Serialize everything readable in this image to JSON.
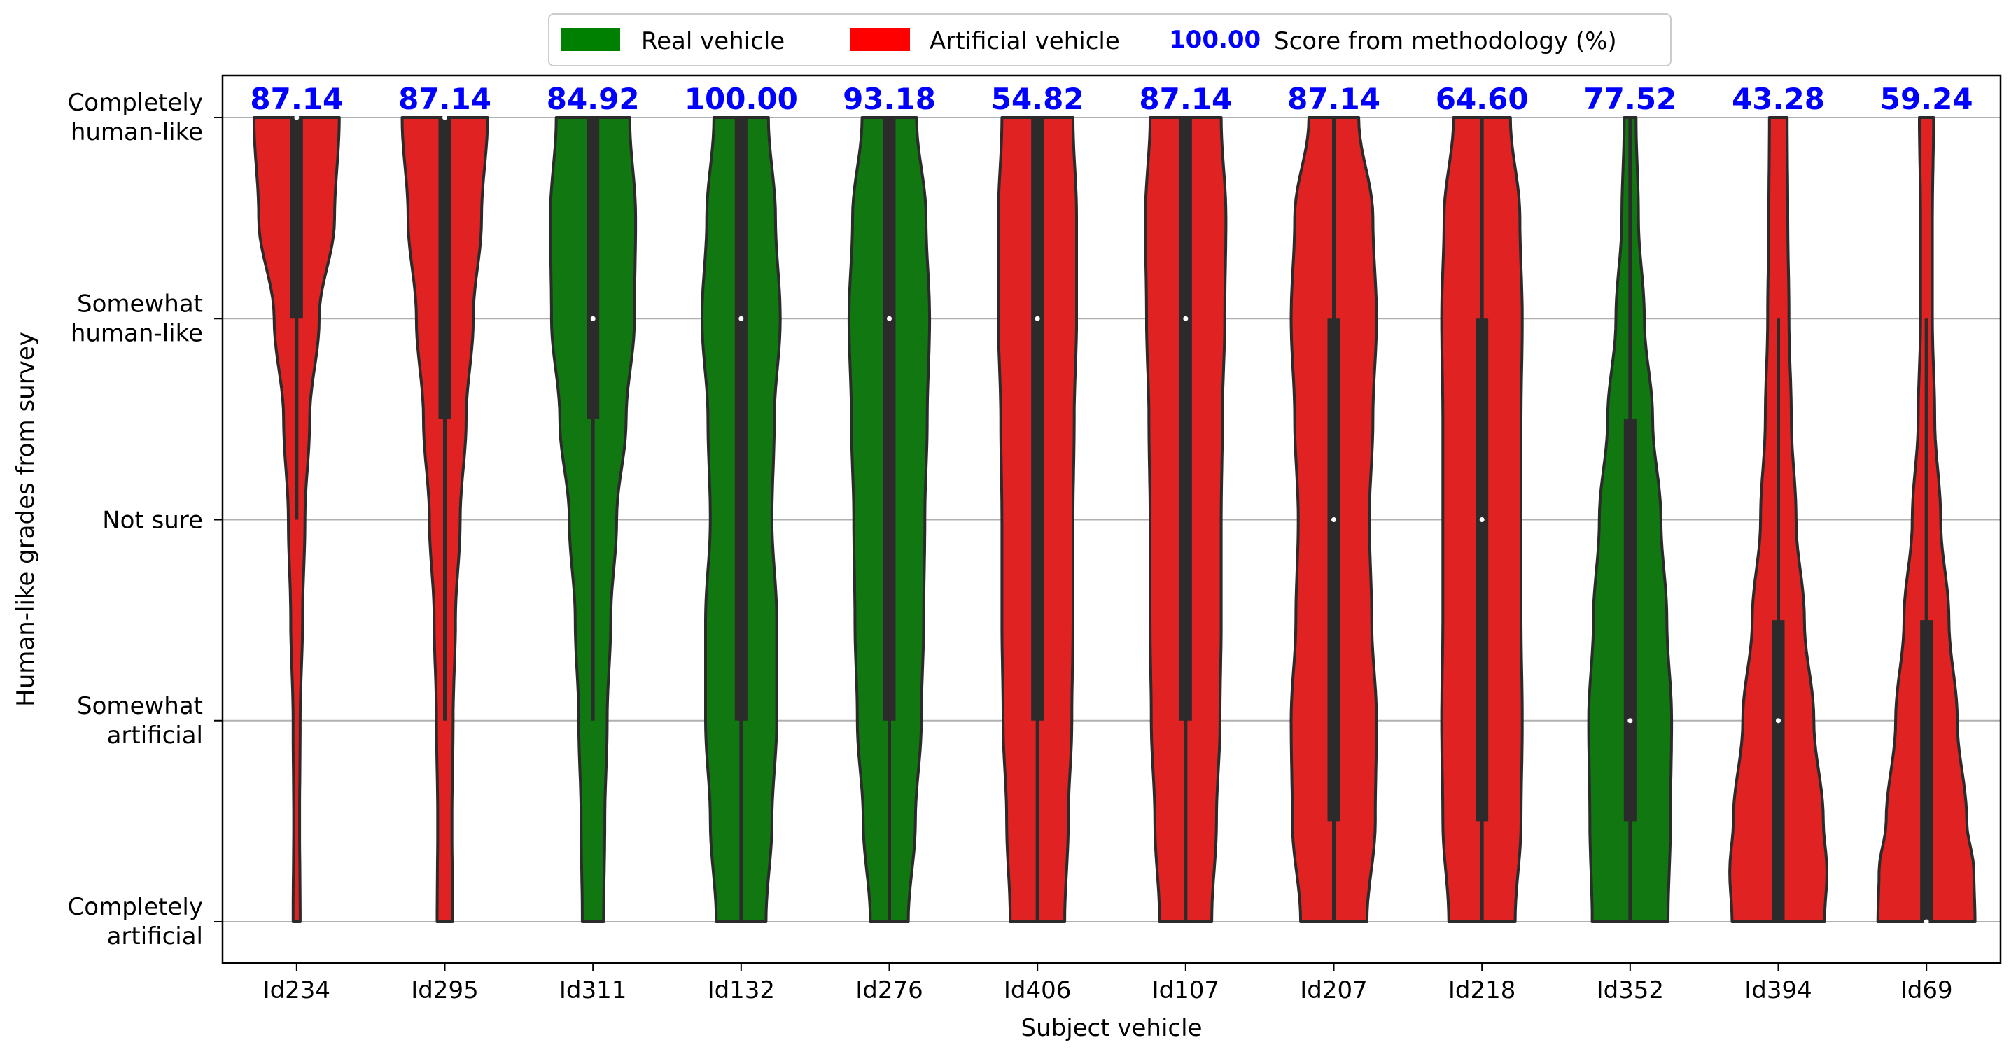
{
  "chart_data": {
    "type": "violin",
    "xlabel": "Subject vehicle",
    "ylabel": "Human-like grades from survey",
    "y_levels": [
      "Completely artificial",
      "Somewhat artificial",
      "Not sure",
      "Somewhat human-like",
      "Completely human-like"
    ],
    "y_tick_lines": [
      [
        "Completely",
        "artificial"
      ],
      [
        "Somewhat",
        "artificial"
      ],
      [
        "Not sure"
      ],
      [
        "Somewhat",
        "human-like"
      ],
      [
        "Completely",
        "human-like"
      ]
    ],
    "ylim": [
      1,
      5
    ],
    "grid": "horizontal",
    "legend": {
      "placement": "top-center",
      "entries": [
        {
          "label": "Real vehicle",
          "color": "#008000"
        },
        {
          "label": "Artificial vehicle",
          "color": "#ff0000"
        }
      ],
      "score_example": "100.00",
      "score_label": "Score from methodology (%)",
      "score_color": "#0000ff"
    },
    "categories": [
      "Id234",
      "Id295",
      "Id311",
      "Id132",
      "Id276",
      "Id406",
      "Id107",
      "Id207",
      "Id218",
      "Id352",
      "Id394",
      "Id69"
    ],
    "series": [
      {
        "id": "Id234",
        "group": "Artificial vehicle",
        "score": "87.14",
        "median": 5,
        "q1": 4,
        "q3": 5,
        "whisker_low": 3,
        "whisker_high": 5,
        "density": [
          [
            1,
            0.06
          ],
          [
            1.5,
            0.05
          ],
          [
            2,
            0.06
          ],
          [
            2.5,
            0.1
          ],
          [
            3,
            0.14
          ],
          [
            3.5,
            0.22
          ],
          [
            4,
            0.38
          ],
          [
            4.5,
            0.64
          ],
          [
            5,
            0.72
          ]
        ]
      },
      {
        "id": "Id295",
        "group": "Artificial vehicle",
        "score": "87.14",
        "median": 5,
        "q1": 3.5,
        "q3": 5,
        "whisker_low": 2,
        "whisker_high": 5,
        "density": [
          [
            1,
            0.13
          ],
          [
            1.5,
            0.12
          ],
          [
            2,
            0.14
          ],
          [
            2.5,
            0.18
          ],
          [
            3,
            0.26
          ],
          [
            3.5,
            0.36
          ],
          [
            4,
            0.48
          ],
          [
            4.5,
            0.62
          ],
          [
            5,
            0.72
          ]
        ]
      },
      {
        "id": "Id311",
        "group": "Real vehicle",
        "score": "84.92",
        "median": 4,
        "q1": 3.5,
        "q3": 5,
        "whisker_low": 2,
        "whisker_high": 5,
        "density": [
          [
            1,
            0.18
          ],
          [
            1.5,
            0.2
          ],
          [
            2,
            0.24
          ],
          [
            2.5,
            0.3
          ],
          [
            3,
            0.4
          ],
          [
            3.5,
            0.56
          ],
          [
            4,
            0.7
          ],
          [
            4.5,
            0.72
          ],
          [
            5,
            0.62
          ]
        ]
      },
      {
        "id": "Id132",
        "group": "Real vehicle",
        "score": "100.00",
        "median": 4,
        "q1": 2,
        "q3": 5,
        "whisker_low": 1,
        "whisker_high": 5,
        "density": [
          [
            1,
            0.42
          ],
          [
            1.5,
            0.52
          ],
          [
            2,
            0.6
          ],
          [
            2.5,
            0.6
          ],
          [
            3,
            0.52
          ],
          [
            3.5,
            0.56
          ],
          [
            4,
            0.66
          ],
          [
            4.5,
            0.58
          ],
          [
            5,
            0.46
          ]
        ]
      },
      {
        "id": "Id276",
        "group": "Real vehicle",
        "score": "93.18",
        "median": 4,
        "q1": 2,
        "q3": 5,
        "whisker_low": 1,
        "whisker_high": 5,
        "density": [
          [
            1,
            0.32
          ],
          [
            1.5,
            0.44
          ],
          [
            2,
            0.54
          ],
          [
            2.5,
            0.58
          ],
          [
            3,
            0.6
          ],
          [
            3.5,
            0.64
          ],
          [
            4,
            0.68
          ],
          [
            4.5,
            0.62
          ],
          [
            5,
            0.46
          ]
        ]
      },
      {
        "id": "Id406",
        "group": "Artificial vehicle",
        "score": "54.82",
        "median": 4,
        "q1": 2,
        "q3": 5,
        "whisker_low": 1,
        "whisker_high": 5,
        "density": [
          [
            1,
            0.46
          ],
          [
            1.5,
            0.52
          ],
          [
            2,
            0.58
          ],
          [
            2.5,
            0.6
          ],
          [
            3,
            0.6
          ],
          [
            3.5,
            0.62
          ],
          [
            4,
            0.66
          ],
          [
            4.5,
            0.66
          ],
          [
            5,
            0.6
          ]
        ]
      },
      {
        "id": "Id107",
        "group": "Artificial vehicle",
        "score": "87.14",
        "median": 4,
        "q1": 2,
        "q3": 5,
        "whisker_low": 1,
        "whisker_high": 5,
        "density": [
          [
            1,
            0.44
          ],
          [
            1.5,
            0.52
          ],
          [
            2,
            0.58
          ],
          [
            2.5,
            0.6
          ],
          [
            3,
            0.6
          ],
          [
            3.5,
            0.62
          ],
          [
            4,
            0.66
          ],
          [
            4.5,
            0.68
          ],
          [
            5,
            0.6
          ]
        ]
      },
      {
        "id": "Id207",
        "group": "Artificial vehicle",
        "score": "87.14",
        "median": 3,
        "q1": 1.5,
        "q3": 4,
        "whisker_low": 1,
        "whisker_high": 5,
        "density": [
          [
            1,
            0.56
          ],
          [
            1.5,
            0.7
          ],
          [
            2,
            0.72
          ],
          [
            2.5,
            0.64
          ],
          [
            3,
            0.6
          ],
          [
            3.5,
            0.66
          ],
          [
            4,
            0.72
          ],
          [
            4.5,
            0.66
          ],
          [
            5,
            0.42
          ]
        ]
      },
      {
        "id": "Id218",
        "group": "Artificial vehicle",
        "score": "64.60",
        "median": 3,
        "q1": 1.5,
        "q3": 4,
        "whisker_low": 1,
        "whisker_high": 5,
        "density": [
          [
            1,
            0.56
          ],
          [
            1.5,
            0.66
          ],
          [
            2,
            0.68
          ],
          [
            2.5,
            0.66
          ],
          [
            3,
            0.66
          ],
          [
            3.5,
            0.66
          ],
          [
            4,
            0.68
          ],
          [
            4.5,
            0.64
          ],
          [
            5,
            0.48
          ]
        ]
      },
      {
        "id": "Id352",
        "group": "Real vehicle",
        "score": "77.52",
        "median": 2,
        "q1": 1.5,
        "q3": 3.5,
        "whisker_low": 1,
        "whisker_high": 5,
        "density": [
          [
            1,
            0.64
          ],
          [
            1.5,
            0.68
          ],
          [
            2,
            0.7
          ],
          [
            2.5,
            0.62
          ],
          [
            3,
            0.52
          ],
          [
            3.5,
            0.38
          ],
          [
            4,
            0.24
          ],
          [
            4.5,
            0.14
          ],
          [
            5,
            0.1
          ]
        ]
      },
      {
        "id": "Id394",
        "group": "Artificial vehicle",
        "score": "43.28",
        "median": 2,
        "q1": 1,
        "q3": 2.5,
        "whisker_low": 1,
        "whisker_high": 4,
        "density": [
          [
            1,
            0.78
          ],
          [
            1.25,
            0.82
          ],
          [
            1.5,
            0.76
          ],
          [
            2,
            0.6
          ],
          [
            2.5,
            0.44
          ],
          [
            3,
            0.3
          ],
          [
            3.5,
            0.22
          ],
          [
            4,
            0.18
          ],
          [
            4.5,
            0.16
          ],
          [
            5,
            0.15
          ]
        ]
      },
      {
        "id": "Id69",
        "group": "Artificial vehicle",
        "score": "59.24",
        "median": 1,
        "q1": 1,
        "q3": 2.5,
        "whisker_low": 1,
        "whisker_high": 4,
        "density": [
          [
            1,
            0.82
          ],
          [
            1.25,
            0.8
          ],
          [
            1.5,
            0.68
          ],
          [
            2,
            0.52
          ],
          [
            2.5,
            0.38
          ],
          [
            3,
            0.24
          ],
          [
            3.5,
            0.14
          ],
          [
            4,
            0.1
          ],
          [
            4.5,
            0.1
          ],
          [
            5,
            0.12
          ]
        ]
      }
    ]
  }
}
